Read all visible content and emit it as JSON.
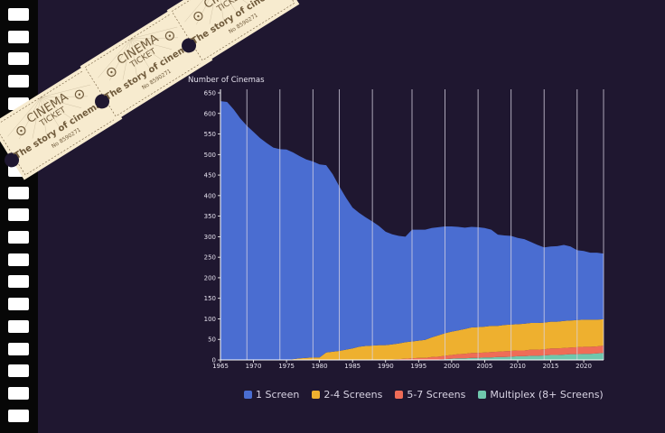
{
  "colors": {
    "background": "#1f1730",
    "one_screen": "#4a6dd1",
    "two_four": "#eeb02f",
    "five_seven": "#ef6c57",
    "multiplex": "#6fc7ad",
    "ticket": "#f7ebcf",
    "ticket_ink": "#6f5a3b"
  },
  "ticket": {
    "line1": "CINEMA",
    "line2": "TICKET",
    "title": "The story of cinemas",
    "number": "No 8590271",
    "emblem": "film-reel-icon"
  },
  "chart_data": {
    "type": "area",
    "stacked": true,
    "title": "",
    "ylabel": "Number of Cinemas",
    "xlabel": "",
    "xlim": [
      1965,
      2023
    ],
    "ylim": [
      0,
      650
    ],
    "x_ticks": [
      1965,
      1970,
      1975,
      1980,
      1985,
      1990,
      1995,
      2000,
      2005,
      2010,
      2015,
      2020
    ],
    "y_ticks": [
      0,
      50,
      100,
      150,
      200,
      250,
      300,
      350,
      400,
      450,
      500,
      550,
      600,
      650
    ],
    "vertical_gridlines": [
      1969,
      1974,
      1979,
      1983,
      1988,
      1994,
      1999,
      2004,
      2009,
      2014,
      2019,
      2023
    ],
    "x": [
      1965,
      1966,
      1967,
      1968,
      1969,
      1970,
      1971,
      1972,
      1973,
      1974,
      1975,
      1976,
      1977,
      1978,
      1979,
      1980,
      1981,
      1982,
      1983,
      1984,
      1985,
      1986,
      1987,
      1988,
      1989,
      1990,
      1991,
      1992,
      1993,
      1994,
      1995,
      1996,
      1997,
      1998,
      1999,
      2000,
      2001,
      2002,
      2003,
      2004,
      2005,
      2006,
      2007,
      2008,
      2009,
      2010,
      2011,
      2012,
      2013,
      2014,
      2015,
      2016,
      2017,
      2018,
      2019,
      2020,
      2021,
      2022,
      2023
    ],
    "series": [
      {
        "name": "1 Screen",
        "values": [
          630,
          628,
          610,
          588,
          570,
          555,
          540,
          528,
          517,
          513,
          512,
          503,
          492,
          483,
          477,
          470,
          456,
          432,
          400,
          370,
          343,
          326,
          313,
          302,
          290,
          276,
          268,
          262,
          257,
          272,
          270,
          268,
          266,
          263,
          260,
          256,
          252,
          247,
          245,
          243,
          240,
          234,
          222,
          218,
          216,
          210,
          206,
          197,
          190,
          183,
          183,
          184,
          185,
          180,
          170,
          167,
          163,
          163,
          160
        ]
      },
      {
        "name": "2-4 Screens",
        "values": [
          0,
          0,
          0,
          0,
          0,
          0,
          0,
          0,
          0,
          0,
          0,
          2,
          4,
          5,
          6,
          6,
          18,
          20,
          22,
          25,
          28,
          32,
          34,
          35,
          36,
          36,
          37,
          38,
          40,
          41,
          42,
          44,
          48,
          52,
          55,
          57,
          58,
          60,
          62,
          63,
          63,
          64,
          63,
          64,
          64,
          64,
          65,
          65,
          65,
          65,
          65,
          65,
          66,
          66,
          66,
          66,
          66,
          65,
          64
        ]
      },
      {
        "name": "5-7 Screens",
        "values": [
          0,
          0,
          0,
          0,
          0,
          0,
          0,
          0,
          0,
          0,
          0,
          0,
          0,
          0,
          0,
          0,
          0,
          0,
          0,
          0,
          0,
          0,
          0,
          0,
          0,
          0,
          1,
          2,
          3,
          4,
          5,
          5,
          6,
          7,
          8,
          9,
          10,
          11,
          12,
          12,
          12,
          13,
          13,
          14,
          14,
          14,
          14,
          15,
          15,
          15,
          16,
          16,
          16,
          16,
          17,
          17,
          17,
          17,
          18
        ]
      },
      {
        "name": "Multiplex (8+ Screens)",
        "values": [
          0,
          0,
          0,
          0,
          0,
          0,
          0,
          0,
          0,
          0,
          0,
          0,
          0,
          0,
          0,
          0,
          0,
          0,
          0,
          0,
          0,
          0,
          0,
          0,
          0,
          0,
          0,
          0,
          0,
          0,
          0,
          0,
          1,
          1,
          2,
          3,
          4,
          4,
          5,
          5,
          6,
          6,
          7,
          7,
          8,
          9,
          9,
          10,
          10,
          11,
          12,
          12,
          13,
          14,
          14,
          15,
          15,
          16,
          17
        ]
      }
    ],
    "legend": [
      "1 Screen",
      "2-4 Screens",
      "5-7 Screens",
      "Multiplex (8+ Screens)"
    ],
    "legend_position": "bottom-center"
  }
}
